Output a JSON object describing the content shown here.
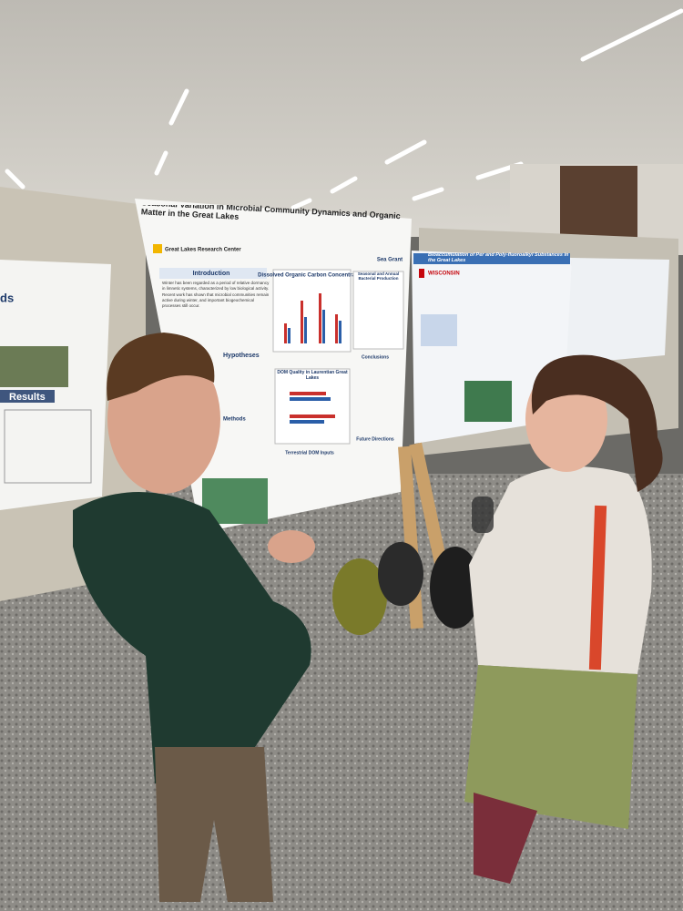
{
  "scene": {
    "main_poster": {
      "title": "Seasonal Variation in Microbial Community Dynamics and Organic Matter in the Great Lakes",
      "logo_left": "Great Lakes Research Center",
      "logo_right": "Sea Grant",
      "sections": [
        "Introduction",
        "Dissolved Organic Carbon Concentration",
        "Seasonal and Annual Bacterial Production",
        "Hypotheses",
        "DOM Quality in Laurentian Great Lakes",
        "Conclusions",
        "Methods",
        "Terrestrial DOM Inputs",
        "Future Directions"
      ],
      "intro_bullets": [
        "Winter has been regarded as a period of relative dormancy in limnetic systems, characterized by low biological activity.",
        "Recent work has shown that microbial communities remain active during winter, and important biogeochemical processes still occur."
      ]
    },
    "left_poster": {
      "sections": [
        "ds",
        "Results"
      ]
    },
    "right_poster": {
      "title": "Bioaccumulation of Per and Poly-fluoroalkyl Substances in the Great Lakes",
      "logo": "WISCONSIN"
    }
  }
}
